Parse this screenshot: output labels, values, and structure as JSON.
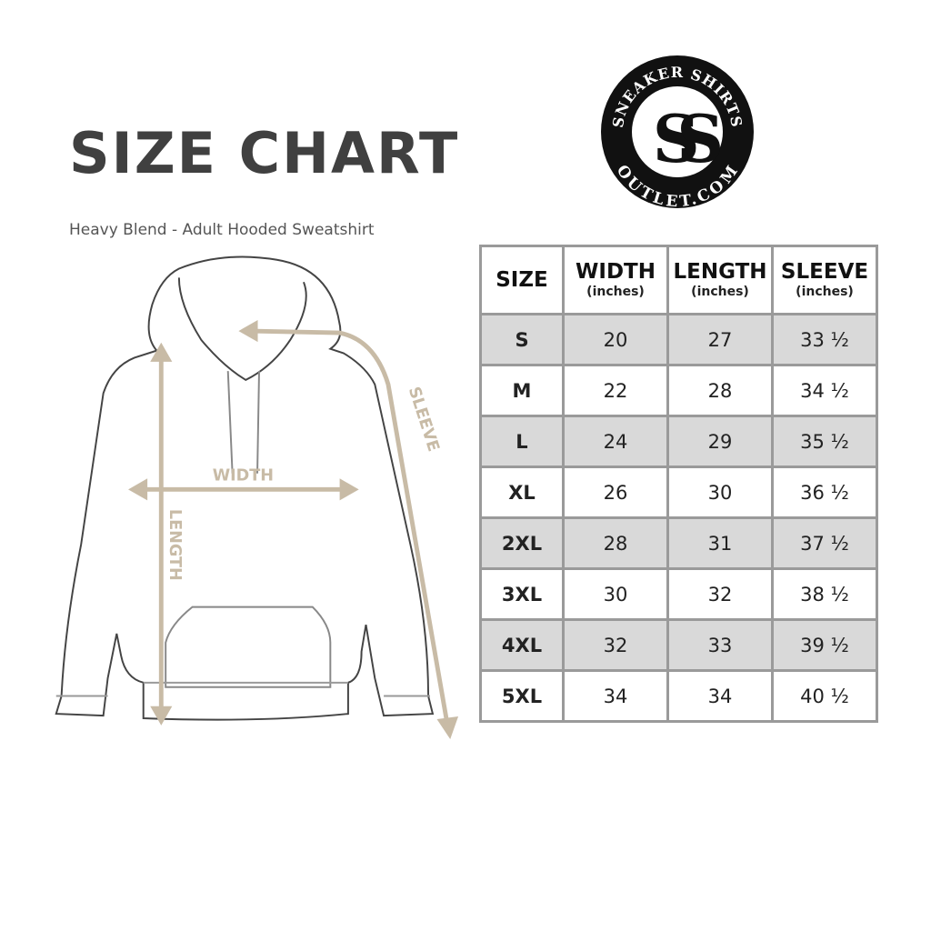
{
  "title": "SIZE CHART",
  "subtitle": "Heavy Blend - Adult Hooded Sweatshirt",
  "logo": {
    "text_top": "SNEAKER SHIRTS",
    "text_bottom": "OUTLET.COM",
    "monogram": "SS"
  },
  "diagram": {
    "width_label": "WIDTH",
    "length_label": "LENGTH",
    "sleeve_label": "SLEEVE",
    "accent_color": "#c8bba6"
  },
  "table": {
    "headers": [
      {
        "main": "SIZE",
        "sub": ""
      },
      {
        "main": "WIDTH",
        "sub": "(inches)"
      },
      {
        "main": "LENGTH",
        "sub": "(inches)"
      },
      {
        "main": "SLEEVE",
        "sub": "(inches)"
      }
    ],
    "rows": [
      [
        "S",
        "20",
        "27",
        "33 ½"
      ],
      [
        "M",
        "22",
        "28",
        "34 ½"
      ],
      [
        "L",
        "24",
        "29",
        "35 ½"
      ],
      [
        "XL",
        "26",
        "30",
        "36 ½"
      ],
      [
        "2XL",
        "28",
        "31",
        "37 ½"
      ],
      [
        "3XL",
        "30",
        "32",
        "38 ½"
      ],
      [
        "4XL",
        "32",
        "33",
        "39 ½"
      ],
      [
        "5XL",
        "34",
        "34",
        "40 ½"
      ]
    ]
  }
}
